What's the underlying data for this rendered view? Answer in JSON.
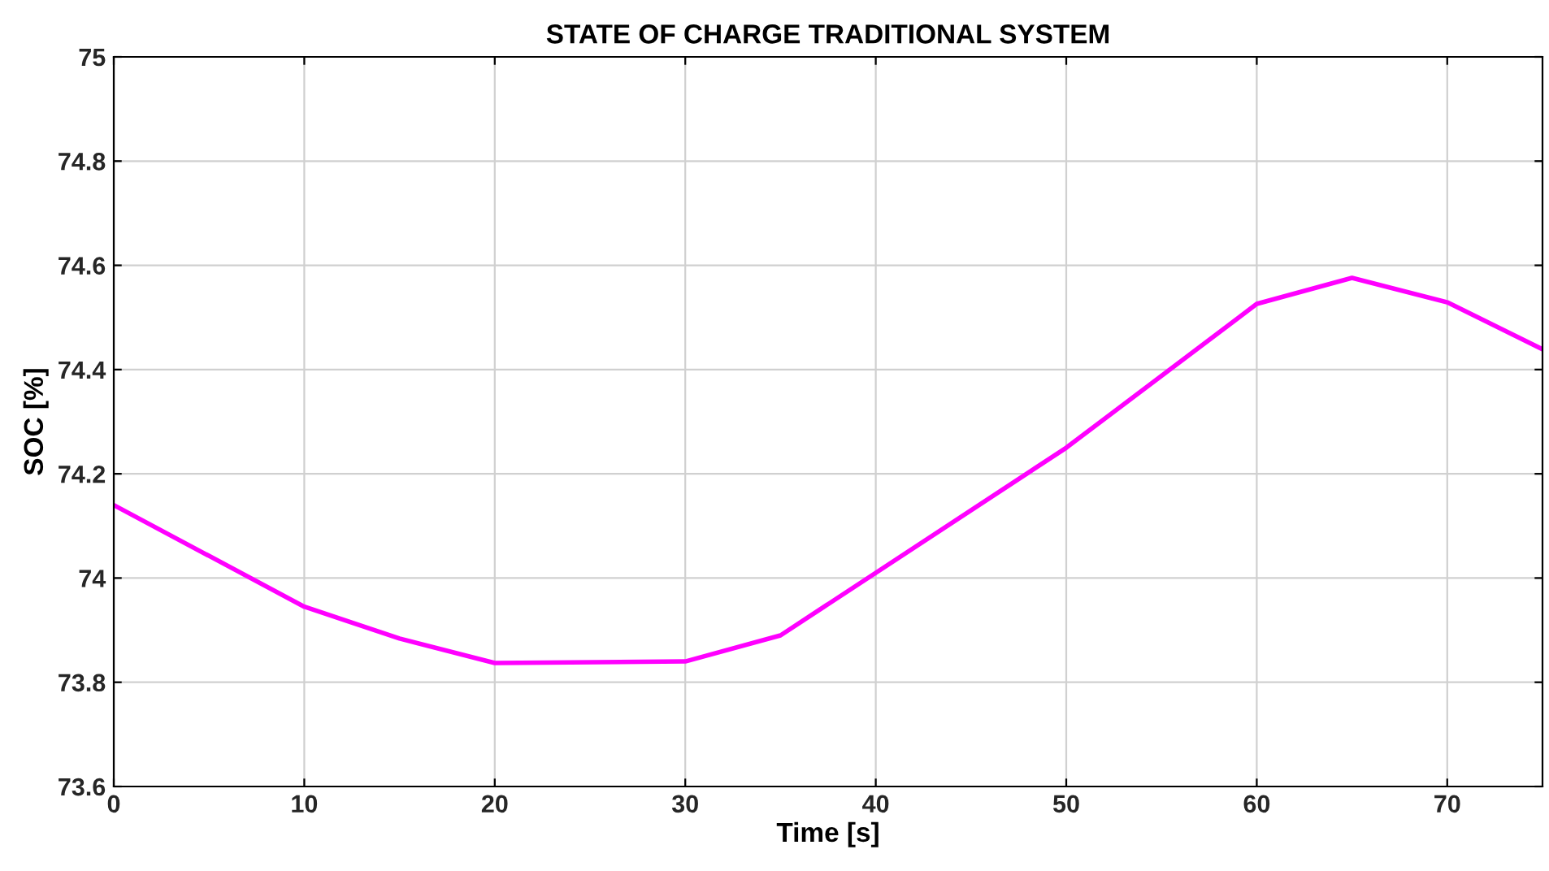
{
  "chart_data": {
    "type": "line",
    "title": "STATE OF CHARGE TRADITIONAL SYSTEM",
    "xlabel": "Time [s]",
    "ylabel": "SOC [%]",
    "x": [
      0,
      10,
      15,
      20,
      30,
      35,
      50,
      60,
      65,
      70,
      75
    ],
    "series": [
      {
        "color": "#ff00ff",
        "values": [
          74.14,
          73.945,
          73.884,
          73.837,
          73.84,
          73.89,
          74.25,
          74.526,
          74.576,
          74.529,
          74.439
        ]
      }
    ],
    "xlim": [
      0,
      75
    ],
    "xticks": [
      0,
      10,
      20,
      30,
      40,
      50,
      60,
      70
    ],
    "ylim": [
      73.6,
      75
    ],
    "yticks": [
      73.6,
      73.8,
      74,
      74.2,
      74.4,
      74.6,
      74.8,
      75
    ],
    "grid": true,
    "legend": false,
    "marker": "none",
    "line_style": "solid"
  }
}
